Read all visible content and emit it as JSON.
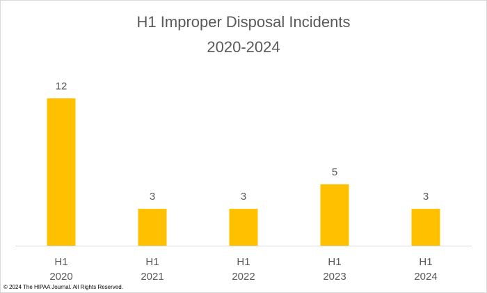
{
  "chart_data": {
    "type": "bar",
    "title": "H1 Improper Disposal Incidents",
    "subtitle": "2020-2024",
    "categories": [
      "H1 2020",
      "H1 2021",
      "H1 2022",
      "H1 2023",
      "H1 2024"
    ],
    "values": [
      12,
      3,
      3,
      5,
      3
    ],
    "color": "#ffc000",
    "ylim": [
      0,
      14
    ],
    "grid": false,
    "note": "© 2024 The HIPAA Journal. All Rights Reserved."
  }
}
